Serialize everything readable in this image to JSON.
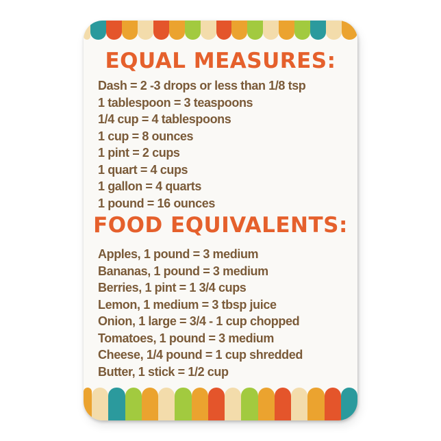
{
  "page": {
    "background": "#ffffff"
  },
  "card": {
    "background": "#faf9f6",
    "heading_color": "#e5602c",
    "body_color": "#7a5a38",
    "palette": {
      "teal": "#2b9a9d",
      "red": "#e4552b",
      "orange": "#eba32f",
      "cream": "#f3dcab",
      "green": "#a2ca3f"
    },
    "sections": [
      {
        "heading": "EQUAL MEASURES:",
        "lines": [
          "Dash = 2 -3 drops or less than 1/8 tsp",
          "1 tablespoon = 3 teaspoons",
          "1/4 cup = 4 tablespoons",
          "1 cup = 8 ounces",
          "1 pint = 2 cups",
          "1 quart = 4 cups",
          "1 gallon = 4 quarts",
          "1 pound = 16 ounces"
        ]
      },
      {
        "heading": "FOOD EQUIVALENTS:",
        "lines": [
          "Apples, 1 pound = 3 medium",
          "Bananas, 1 pound = 3 medium",
          "Berries, 1 pint = 1 3/4 cups",
          "Lemon, 1 medium = 3 tbsp juice",
          "Onion, 1 large = 3/4 - 1 cup chopped",
          "Tomatoes, 1 pound = 3 medium",
          "Cheese, 1/4 pound = 1 cup shredded",
          "Butter, 1 stick = 1/2 cup"
        ]
      }
    ],
    "top_scallops": [
      "#f3dcab",
      "#2b9a9d",
      "#e4552b",
      "#eba32f",
      "#f3dcab",
      "#e4552b",
      "#eba32f",
      "#a2ca3f",
      "#f3dcab",
      "#e4552b",
      "#eba32f",
      "#a2ca3f",
      "#f3dcab",
      "#eba32f",
      "#a2ca3f",
      "#2b9a9d",
      "#f3dcab",
      "#eba32f"
    ],
    "bottom_stripes": [
      "#eba32f",
      "#f3dcab",
      "#2b9a9d",
      "#a2ca3f",
      "#eba32f",
      "#f3dcab",
      "#a2ca3f",
      "#eba32f",
      "#e4552b",
      "#f3dcab",
      "#a2ca3f",
      "#eba32f",
      "#e4552b",
      "#f3dcab",
      "#eba32f",
      "#e4552b",
      "#2b9a9d"
    ]
  }
}
